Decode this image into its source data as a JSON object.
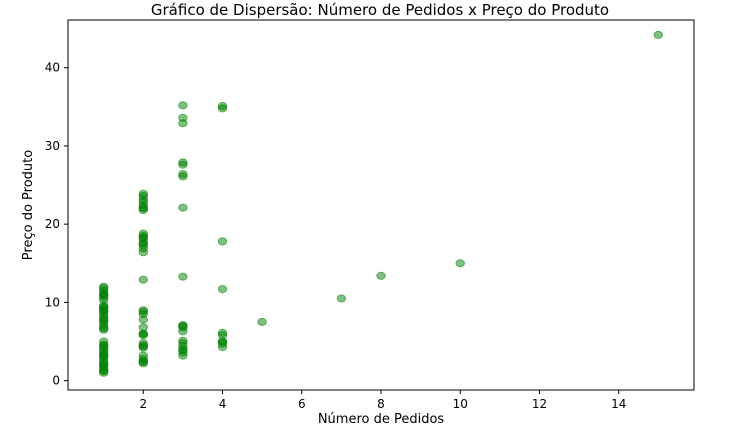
{
  "chart_data": {
    "type": "scatter",
    "title": "Gráfico de Dispersão: Número de Pedidos x Preço do Produto",
    "xlabel": "Número de Pedidos",
    "ylabel": "Preço do Produto",
    "xlim": [
      0.1,
      15.9
    ],
    "ylim": [
      -1.2,
      46.1
    ],
    "xticks": [
      2,
      4,
      6,
      8,
      10,
      12,
      14
    ],
    "yticks": [
      0,
      10,
      20,
      30,
      40
    ],
    "grid": false,
    "marker_color": "#008000",
    "marker_opacity": 0.5,
    "series": [
      {
        "x": [
          1,
          1,
          1,
          1,
          1,
          1,
          1,
          1,
          1,
          1,
          1,
          1,
          1,
          1,
          1,
          1,
          1,
          1,
          1,
          1,
          1,
          1,
          1,
          1,
          1,
          1,
          1,
          1,
          1,
          1,
          1,
          1,
          1,
          1,
          1,
          1,
          1,
          1,
          1,
          1,
          2,
          2,
          2,
          2,
          2,
          2,
          2,
          2,
          2,
          2,
          2,
          2,
          2,
          2,
          2,
          2,
          2,
          2,
          2,
          2,
          2,
          2,
          2,
          2,
          2,
          2,
          2,
          2,
          2,
          2,
          2,
          2,
          2,
          2,
          2,
          3,
          3,
          3,
          3,
          3,
          3,
          3,
          3,
          3,
          3,
          3,
          3,
          3,
          3,
          3,
          3,
          3,
          3,
          3,
          3,
          4,
          4,
          4,
          4,
          4,
          4,
          4,
          4,
          4,
          4,
          5,
          7,
          8,
          10,
          15
        ],
        "y": [
          1.0,
          1.3,
          1.6,
          1.9,
          2.2,
          2.5,
          2.8,
          3.1,
          3.4,
          3.7,
          4.0,
          4.3,
          4.6,
          6.5,
          6.9,
          7.3,
          7.6,
          8.0,
          8.3,
          8.6,
          9.0,
          9.3,
          9.6,
          10.6,
          10.9,
          11.2,
          11.5,
          11.8,
          12.0,
          1.2,
          2.0,
          3.3,
          6.7,
          7.8,
          8.9,
          9.4,
          10.3,
          11.0,
          4.5,
          5.0,
          2.2,
          2.5,
          2.8,
          3.2,
          4.2,
          4.5,
          4.8,
          5.8,
          6.0,
          6.8,
          7.8,
          8.5,
          8.8,
          9.0,
          12.9,
          16.4,
          16.9,
          17.3,
          17.7,
          18.1,
          18.5,
          18.8,
          21.8,
          22.2,
          22.5,
          22.9,
          23.2,
          23.6,
          23.9,
          2.4,
          4.4,
          6.0,
          17.5,
          22.0,
          18.3,
          3.2,
          3.6,
          4.0,
          4.4,
          4.8,
          5.1,
          6.3,
          6.8,
          7.1,
          13.3,
          22.1,
          26.1,
          26.4,
          27.6,
          27.9,
          32.9,
          33.6,
          35.2,
          3.9,
          7.0,
          4.3,
          4.7,
          5.0,
          5.8,
          6.1,
          11.7,
          17.8,
          34.8,
          35.1,
          5.0,
          7.5,
          10.5,
          13.4,
          15.0,
          44.2
        ]
      }
    ]
  }
}
